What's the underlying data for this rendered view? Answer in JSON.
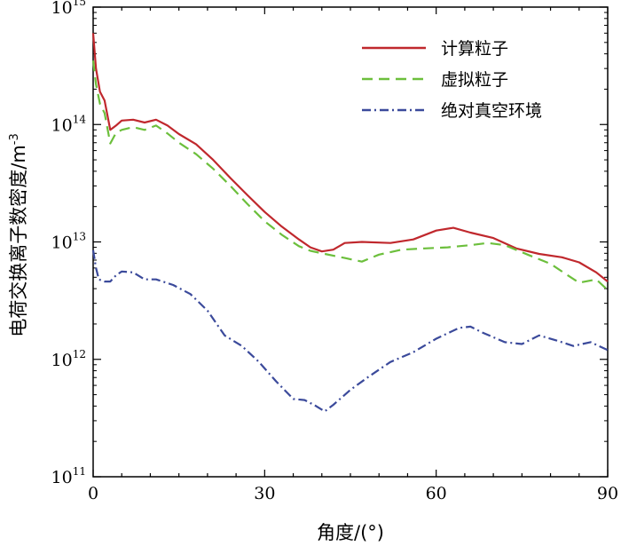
{
  "chart_data": {
    "type": "line",
    "xlabel": "角度/(°)",
    "ylabel": "电荷交换离子数密度/m",
    "ylabel_exp": "-3",
    "xlim": [
      0,
      90
    ],
    "ylim": [
      100000000000.0,
      1000000000000000.0
    ],
    "yscale": "log",
    "xticks": [
      {
        "value": 0,
        "label": "0"
      },
      {
        "value": 30,
        "label": "30"
      },
      {
        "value": 60,
        "label": "60"
      },
      {
        "value": 90,
        "label": "90"
      }
    ],
    "yticks": [
      {
        "value": 100000000000.0,
        "base": "10",
        "exp": "11"
      },
      {
        "value": 1000000000000.0,
        "base": "10",
        "exp": "12"
      },
      {
        "value": 10000000000000.0,
        "base": "10",
        "exp": "13"
      },
      {
        "value": 100000000000000.0,
        "base": "10",
        "exp": "14"
      },
      {
        "value": 1000000000000000.0,
        "base": "10",
        "exp": "15"
      }
    ],
    "grid": false,
    "legend_position": "top-right",
    "series": [
      {
        "name": "计算粒子",
        "color": "#c0282d",
        "dash": "solid",
        "points": [
          [
            0,
            600000000000000.0
          ],
          [
            0.5,
            300000000000000.0
          ],
          [
            1.2,
            190000000000000.0
          ],
          [
            2,
            160000000000000.0
          ],
          [
            3,
            90000000000000.0
          ],
          [
            4,
            98000000000000.0
          ],
          [
            5,
            108000000000000.0
          ],
          [
            7,
            110000000000000.0
          ],
          [
            9,
            104000000000000.0
          ],
          [
            11,
            110000000000000.0
          ],
          [
            13,
            98000000000000.0
          ],
          [
            15,
            83000000000000.0
          ],
          [
            18,
            68000000000000.0
          ],
          [
            21,
            50000000000000.0
          ],
          [
            24,
            35000000000000.0
          ],
          [
            27,
            25000000000000.0
          ],
          [
            30,
            18000000000000.0
          ],
          [
            33,
            13500000000000.0
          ],
          [
            36,
            10500000000000.0
          ],
          [
            38,
            9000000000000.0
          ],
          [
            40,
            8300000000000.0
          ],
          [
            42,
            8600000000000.0
          ],
          [
            44,
            9800000000000.0
          ],
          [
            47,
            10000000000000.0
          ],
          [
            52,
            9800000000000.0
          ],
          [
            56,
            10500000000000.0
          ],
          [
            60,
            12500000000000.0
          ],
          [
            63,
            13200000000000.0
          ],
          [
            66,
            12000000000000.0
          ],
          [
            70,
            10800000000000.0
          ],
          [
            74,
            8800000000000.0
          ],
          [
            78,
            7900000000000.0
          ],
          [
            82,
            7400000000000.0
          ],
          [
            85,
            6700000000000.0
          ],
          [
            88,
            5500000000000.0
          ],
          [
            90,
            4600000000000.0
          ]
        ]
      },
      {
        "name": "虚拟粒子",
        "color": "#6cbf3c",
        "dash": "dashed",
        "points": [
          [
            0,
            350000000000000.0
          ],
          [
            0.5,
            220000000000000.0
          ],
          [
            1.2,
            150000000000000.0
          ],
          [
            2,
            125000000000000.0
          ],
          [
            3,
            69000000000000.0
          ],
          [
            4,
            85000000000000.0
          ],
          [
            5,
            90000000000000.0
          ],
          [
            7,
            95000000000000.0
          ],
          [
            9,
            90000000000000.0
          ],
          [
            11,
            98000000000000.0
          ],
          [
            13,
            84000000000000.0
          ],
          [
            15,
            70000000000000.0
          ],
          [
            18,
            56000000000000.0
          ],
          [
            21,
            42000000000000.0
          ],
          [
            24,
            30000000000000.0
          ],
          [
            27,
            21000000000000.0
          ],
          [
            30,
            15000000000000.0
          ],
          [
            33,
            11500000000000.0
          ],
          [
            36,
            9200000000000.0
          ],
          [
            38,
            8400000000000.0
          ],
          [
            40,
            8000000000000.0
          ],
          [
            44,
            7300000000000.0
          ],
          [
            47,
            6800000000000.0
          ],
          [
            50,
            7800000000000.0
          ],
          [
            54,
            8600000000000.0
          ],
          [
            58,
            8800000000000.0
          ],
          [
            62,
            9000000000000.0
          ],
          [
            66,
            9400000000000.0
          ],
          [
            69,
            9800000000000.0
          ],
          [
            72,
            9400000000000.0
          ],
          [
            76,
            7800000000000.0
          ],
          [
            80,
            6500000000000.0
          ],
          [
            83,
            5200000000000.0
          ],
          [
            85,
            4500000000000.0
          ],
          [
            88,
            4800000000000.0
          ],
          [
            90,
            3900000000000.0
          ]
        ]
      },
      {
        "name": "绝对真空环境",
        "color": "#3b4a9b",
        "dash": "dashdot",
        "points": [
          [
            0,
            8500000000000.0
          ],
          [
            0.5,
            6000000000000.0
          ],
          [
            1,
            4800000000000.0
          ],
          [
            2,
            4600000000000.0
          ],
          [
            3,
            4600000000000.0
          ],
          [
            4,
            5200000000000.0
          ],
          [
            5,
            5600000000000.0
          ],
          [
            7,
            5500000000000.0
          ],
          [
            9,
            4800000000000.0
          ],
          [
            11,
            4800000000000.0
          ],
          [
            14,
            4300000000000.0
          ],
          [
            17,
            3600000000000.0
          ],
          [
            20,
            2600000000000.0
          ],
          [
            23,
            1600000000000.0
          ],
          [
            26,
            1300000000000.0
          ],
          [
            29,
            950000000000.0
          ],
          [
            32,
            650000000000.0
          ],
          [
            35,
            460000000000.0
          ],
          [
            37,
            450000000000.0
          ],
          [
            39,
            400000000000.0
          ],
          [
            40.5,
            360000000000.0
          ],
          [
            42,
            410000000000.0
          ],
          [
            45,
            550000000000.0
          ],
          [
            48,
            700000000000.0
          ],
          [
            52,
            950000000000.0
          ],
          [
            56,
            1150000000000.0
          ],
          [
            60,
            1500000000000.0
          ],
          [
            64,
            1850000000000.0
          ],
          [
            66,
            1900000000000.0
          ],
          [
            68,
            1700000000000.0
          ],
          [
            72,
            1400000000000.0
          ],
          [
            75,
            1350000000000.0
          ],
          [
            78,
            1600000000000.0
          ],
          [
            81,
            1450000000000.0
          ],
          [
            84,
            1300000000000.0
          ],
          [
            87,
            1400000000000.0
          ],
          [
            90,
            1200000000000.0
          ]
        ]
      }
    ]
  }
}
